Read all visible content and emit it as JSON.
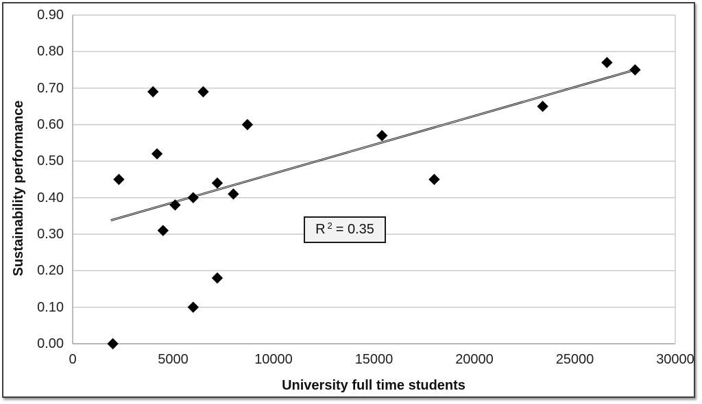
{
  "chart_data": {
    "type": "scatter",
    "title": "",
    "xlabel": "University full time students",
    "ylabel": "Sustainability performance",
    "xlim": [
      0,
      30000
    ],
    "ylim": [
      0.0,
      0.9
    ],
    "x_ticks": [
      "0",
      "5000",
      "10000",
      "15000",
      "20000",
      "25000",
      "30000"
    ],
    "y_ticks": [
      "0.00",
      "0.10",
      "0.20",
      "0.30",
      "0.40",
      "0.50",
      "0.60",
      "0.70",
      "0.80",
      "0.90"
    ],
    "grid": true,
    "legend": "none",
    "marker": "diamond",
    "points": [
      [
        2000,
        0.0
      ],
      [
        2300,
        0.45
      ],
      [
        4000,
        0.69
      ],
      [
        4200,
        0.52
      ],
      [
        4500,
        0.31
      ],
      [
        5100,
        0.38
      ],
      [
        6000,
        0.4
      ],
      [
        6000,
        0.1
      ],
      [
        6500,
        0.69
      ],
      [
        7200,
        0.44
      ],
      [
        7200,
        0.18
      ],
      [
        8000,
        0.41
      ],
      [
        8700,
        0.6
      ],
      [
        15400,
        0.57
      ],
      [
        18000,
        0.45
      ],
      [
        23400,
        0.65
      ],
      [
        26600,
        0.77
      ],
      [
        28000,
        0.75
      ]
    ],
    "trendline": {
      "x1": 1900,
      "y1": 0.338,
      "x2": 27800,
      "y2": 0.747
    },
    "annotation": {
      "label": "R",
      "exponent": "2",
      "value_text": "= 0.35"
    },
    "colors": {
      "marker": "#000000",
      "trendline": "#000000",
      "grid": "#c9c9c9",
      "axis": "#9e9e9e",
      "annotation_bg": "#f2f2f2",
      "annotation_border": "#1a1a1a"
    }
  }
}
